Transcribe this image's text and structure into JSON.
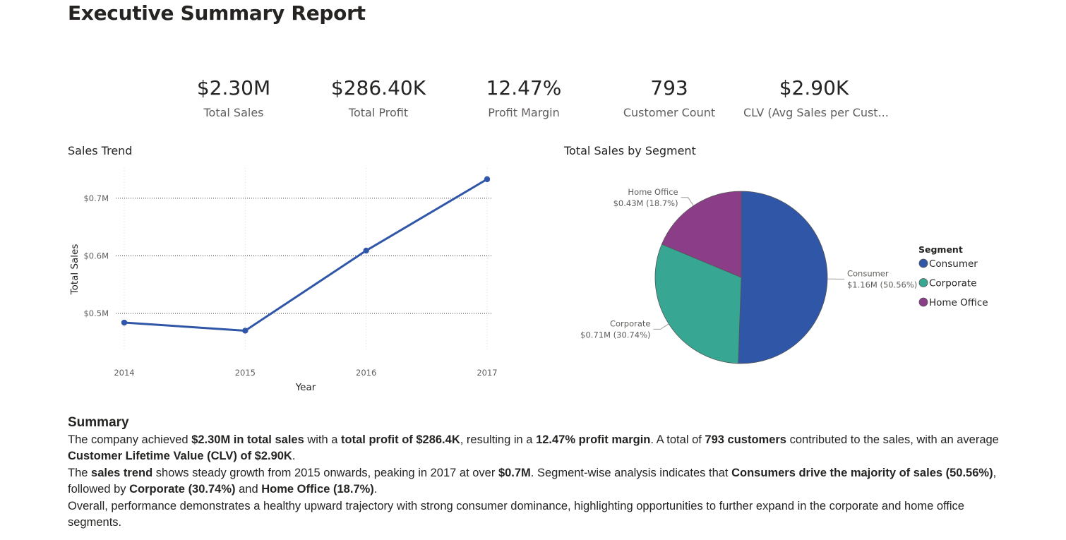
{
  "report": {
    "title": "Executive Summary Report"
  },
  "kpis": [
    {
      "value": "$2.30M",
      "label": "Total Sales"
    },
    {
      "value": "$286.40K",
      "label": "Total Profit"
    },
    {
      "value": "12.47%",
      "label": "Profit Margin"
    },
    {
      "value": "793",
      "label": "Customer Count"
    },
    {
      "value": "$2.90K",
      "label": "CLV (Avg Sales per Cust..."
    }
  ],
  "chart_data": [
    {
      "type": "line",
      "title": "Sales Trend",
      "xlabel": "Year",
      "ylabel": "Total Sales",
      "x": [
        "2014",
        "2015",
        "2016",
        "2017"
      ],
      "series": [
        {
          "values": [
            0.484,
            0.47,
            0.609,
            0.733
          ]
        }
      ],
      "y_unit": "M",
      "yticks": [
        0.5,
        0.6,
        0.7
      ],
      "ytick_labels": [
        "$0.5M",
        "$0.6M",
        "$0.7M"
      ],
      "ylim": [
        0.435,
        0.75
      ],
      "grid": true,
      "color": "#3056a8"
    },
    {
      "type": "pie",
      "title": "Total Sales by Segment",
      "legend_title": "Segment",
      "legend_position": "right",
      "slices": [
        {
          "name": "Consumer",
          "value": 1.16,
          "percent": 50.56,
          "label": "$1.16M (50.56%)",
          "color": "#3056a8"
        },
        {
          "name": "Corporate",
          "value": 0.71,
          "percent": 30.74,
          "label": "$0.71M (30.74%)",
          "color": "#37a794"
        },
        {
          "name": "Home Office",
          "value": 0.43,
          "percent": 18.7,
          "label": "$0.43M (18.7%)",
          "color": "#8b3d88"
        }
      ]
    }
  ],
  "summary": {
    "heading": "Summary",
    "paragraphs": [
      [
        {
          "t": "The company achieved "
        },
        {
          "t": "$2.30M in total sales",
          "b": true
        },
        {
          "t": " with a "
        },
        {
          "t": "total profit of $286.4K",
          "b": true
        },
        {
          "t": ", resulting in a "
        },
        {
          "t": "12.47% profit margin",
          "b": true
        },
        {
          "t": ". A total of "
        },
        {
          "t": "793 customers",
          "b": true
        },
        {
          "t": " contributed to the sales, with an average "
        },
        {
          "t": "Customer Lifetime Value (CLV) of $2.90K",
          "b": true
        },
        {
          "t": "."
        }
      ],
      [
        {
          "t": "The "
        },
        {
          "t": "sales trend",
          "b": true
        },
        {
          "t": " shows steady growth from 2015 onwards, peaking in 2017 at over "
        },
        {
          "t": "$0.7M",
          "b": true
        },
        {
          "t": ". Segment-wise analysis indicates that "
        },
        {
          "t": "Consumers drive the majority of sales (50.56%)",
          "b": true
        },
        {
          "t": ", followed by "
        },
        {
          "t": "Corporate (30.74%)",
          "b": true
        },
        {
          "t": " and "
        },
        {
          "t": "Home Office (18.7%)",
          "b": true
        },
        {
          "t": "."
        }
      ],
      [
        {
          "t": "Overall, performance demonstrates a healthy upward trajectory with strong consumer dominance, highlighting opportunities to further expand in the corporate and home office segments."
        }
      ]
    ]
  }
}
